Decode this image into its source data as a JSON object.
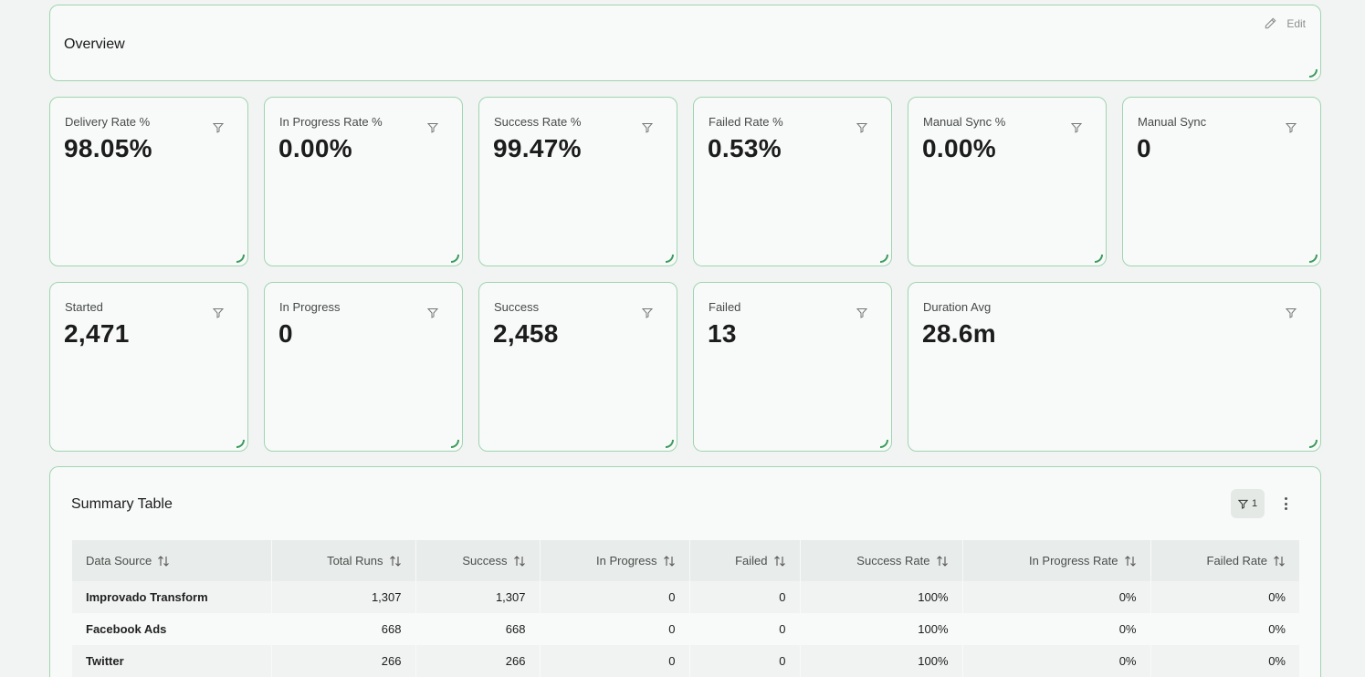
{
  "overview": {
    "title": "Overview",
    "edit_label": "Edit"
  },
  "metrics_row1": [
    {
      "label": "Delivery Rate %",
      "value": "98.05%"
    },
    {
      "label": "In Progress Rate %",
      "value": "0.00%"
    },
    {
      "label": "Success Rate %",
      "value": "99.47%"
    },
    {
      "label": "Failed Rate %",
      "value": "0.53%"
    },
    {
      "label": "Manual Sync %",
      "value": "0.00%"
    },
    {
      "label": "Manual Sync",
      "value": "0"
    }
  ],
  "metrics_row2": [
    {
      "label": "Started",
      "value": "2,471"
    },
    {
      "label": "In Progress",
      "value": "0"
    },
    {
      "label": "Success",
      "value": "2,458"
    },
    {
      "label": "Failed",
      "value": "13"
    },
    {
      "label": "Duration Avg",
      "value": "28.6m"
    }
  ],
  "summary": {
    "title": "Summary Table",
    "filter_count": "1",
    "columns": [
      "Data Source",
      "Total Runs",
      "Success",
      "In Progress",
      "Failed",
      "Success Rate",
      "In Progress Rate",
      "Failed Rate"
    ],
    "rows": [
      [
        "Improvado Transform",
        "1,307",
        "1,307",
        "0",
        "0",
        "100%",
        "0%",
        "0%"
      ],
      [
        "Facebook Ads",
        "668",
        "668",
        "0",
        "0",
        "100%",
        "0%",
        "0%"
      ],
      [
        "Twitter",
        "266",
        "266",
        "0",
        "0",
        "100%",
        "0%",
        "0%"
      ]
    ]
  },
  "icons": {
    "edit": "pencil-icon",
    "filter": "filter-icon",
    "sort": "sort-arrows-icon",
    "more": "more-vertical-icon"
  },
  "colors": {
    "card_border": "#9fd4b0",
    "accent": "#3d9b5f",
    "background": "#f2f4f3"
  }
}
